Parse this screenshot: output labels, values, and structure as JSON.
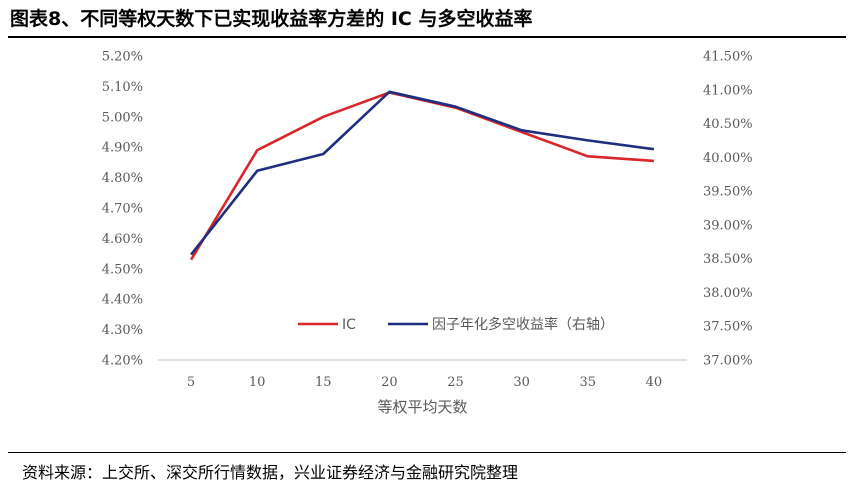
{
  "figure": {
    "title": "图表8、不同等权天数下已实现收益率方差的 IC 与多空收益率",
    "source": "资料来源：上交所、深交所行情数据，兴业证券经济与金融研究院整理"
  },
  "chart_data": {
    "type": "line",
    "title": "图表8、不同等权天数下已实现收益率方差的 IC 与多空收益率",
    "xlabel": "等权平均天数",
    "ylabel": "",
    "y2label": "",
    "x": [
      5,
      10,
      15,
      20,
      25,
      30,
      35,
      40
    ],
    "x_tick_labels": [
      "5",
      "10",
      "15",
      "20",
      "25",
      "30",
      "35",
      "40"
    ],
    "ylim": [
      4.2,
      5.2
    ],
    "y_tick_labels": [
      "5.20%",
      "5.10%",
      "5.00%",
      "4.90%",
      "4.80%",
      "4.70%",
      "4.60%",
      "4.50%",
      "4.40%",
      "4.30%",
      "4.20%"
    ],
    "y2lim": [
      37.0,
      41.5
    ],
    "y2_tick_labels": [
      "41.50%",
      "41.00%",
      "40.50%",
      "40.00%",
      "39.50%",
      "39.00%",
      "38.50%",
      "38.00%",
      "37.50%",
      "37.00%"
    ],
    "grid": false,
    "legend_position": "bottom-right",
    "series": [
      {
        "name": "IC",
        "axis": "left",
        "color": "#D9262B",
        "values": [
          4.53,
          4.89,
          5.0,
          5.08,
          5.03,
          4.95,
          4.87,
          4.855
        ]
      },
      {
        "name": "因子年化多空收益率（右轴）",
        "axis": "right",
        "color": "#1F2F7F",
        "values": [
          38.56,
          39.8,
          40.05,
          40.97,
          40.75,
          40.4,
          40.25,
          40.12
        ]
      }
    ]
  }
}
